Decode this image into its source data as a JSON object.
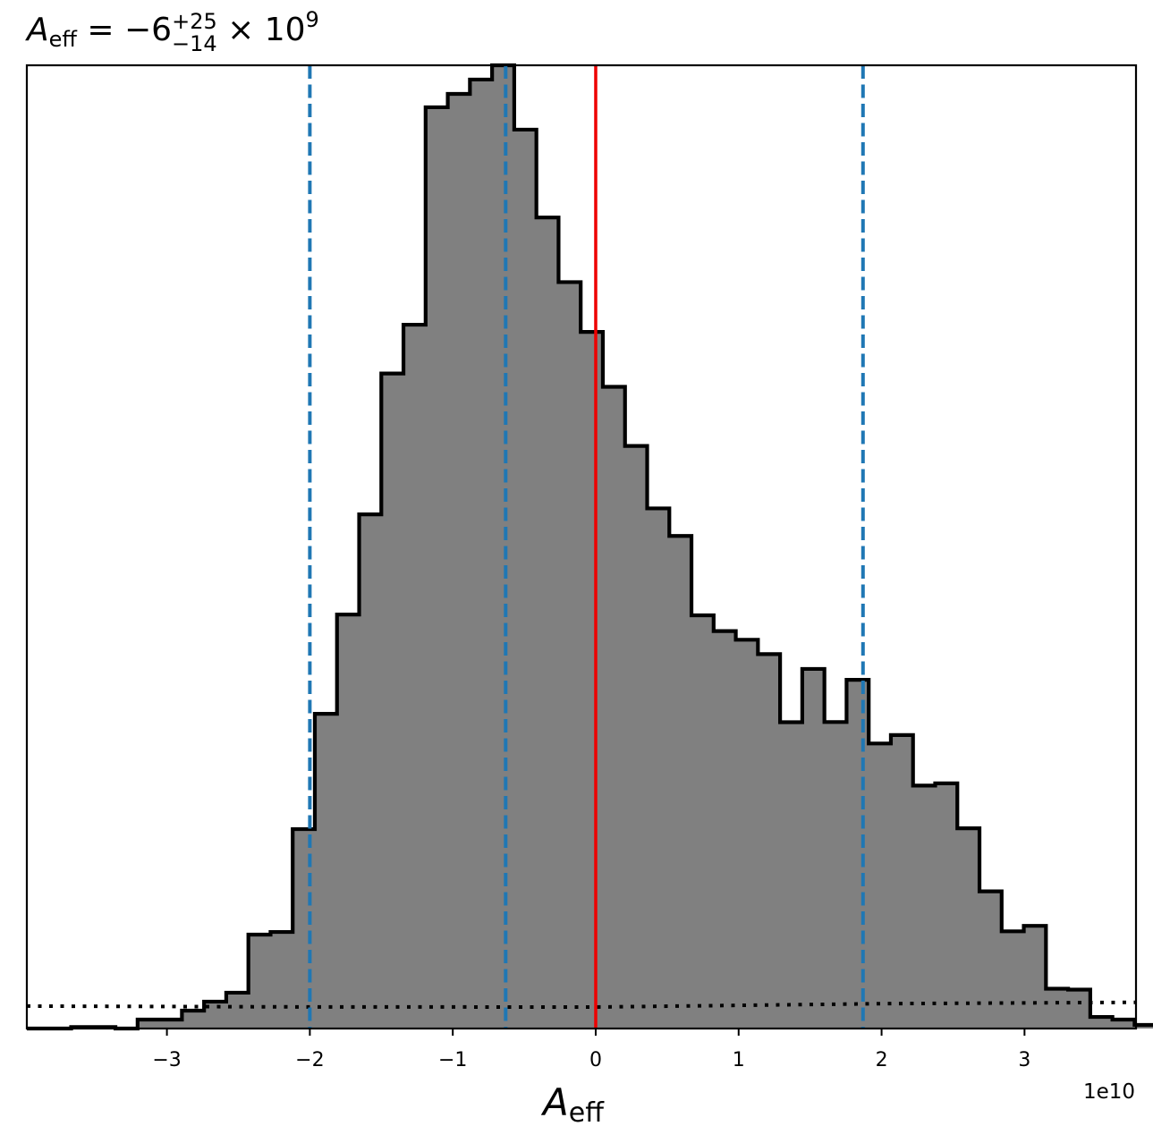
{
  "chart_data": {
    "type": "histogram",
    "title": {
      "symbol": "A",
      "subscript": "eff",
      "equals": " = −6",
      "upper_error": "+25",
      "lower_error": "−14",
      "multiplier": " × 10",
      "exponent": "9"
    },
    "xlabel": {
      "symbol": "A",
      "subscript": "eff"
    },
    "x_offset_label": "1e10",
    "xlim": [
      -39800000000.0,
      37800000000.0
    ],
    "ylim": [
      0,
      1.0
    ],
    "x_ticks": [
      {
        "value": -30000000000.0,
        "label": "−3"
      },
      {
        "value": -20000000000.0,
        "label": "−2"
      },
      {
        "value": -10000000000.0,
        "label": "−1"
      },
      {
        "value": 0,
        "label": "0"
      },
      {
        "value": 10000000000.0,
        "label": "1"
      },
      {
        "value": 20000000000.0,
        "label": "2"
      },
      {
        "value": 30000000000.0,
        "label": "3"
      }
    ],
    "y_ticks_visible": false,
    "grid": false,
    "bin_start": -39800000000.0,
    "bin_width": 1550000000.0,
    "counts": [
      0.0,
      0.0,
      0.0015,
      0.0015,
      0.0,
      0.0093,
      0.0093,
      0.0186,
      0.0279,
      0.0372,
      0.0975,
      0.1002,
      0.207,
      0.3267,
      0.4298,
      0.5338,
      0.68,
      0.7307,
      0.9564,
      0.9703,
      0.9852,
      1.0,
      0.9332,
      0.842,
      0.7749,
      0.7232,
      0.6662,
      0.6048,
      0.54,
      0.5114,
      0.429,
      0.4126,
      0.4036,
      0.3887,
      0.318,
      0.3733,
      0.3182,
      0.362,
      0.2959,
      0.3047,
      0.2522,
      0.2545,
      0.2079,
      0.1424,
      0.1009,
      0.1066,
      0.0413,
      0.0404,
      0.012,
      0.0093,
      0.0037,
      0.0
    ],
    "prior_curve": {
      "style": "dotted",
      "x": [
        -39800000000.0,
        -20000000000.0,
        0,
        20000000000.0,
        37800000000.0
      ],
      "y": [
        0.0233,
        0.0224,
        0.0223,
        0.0258,
        0.0272
      ]
    },
    "vlines": [
      {
        "x": -20000000000.0,
        "style": "dashed",
        "color": "#1f77b4"
      },
      {
        "x": -6300000000.0,
        "style": "dashed",
        "color": "#1f77b4"
      },
      {
        "x": 18700000000.0,
        "style": "dashed",
        "color": "#1f77b4"
      },
      {
        "x": 0,
        "style": "solid",
        "color": "#ee0000"
      }
    ],
    "colors": {
      "fill": "#808080",
      "edge": "#000000"
    }
  }
}
